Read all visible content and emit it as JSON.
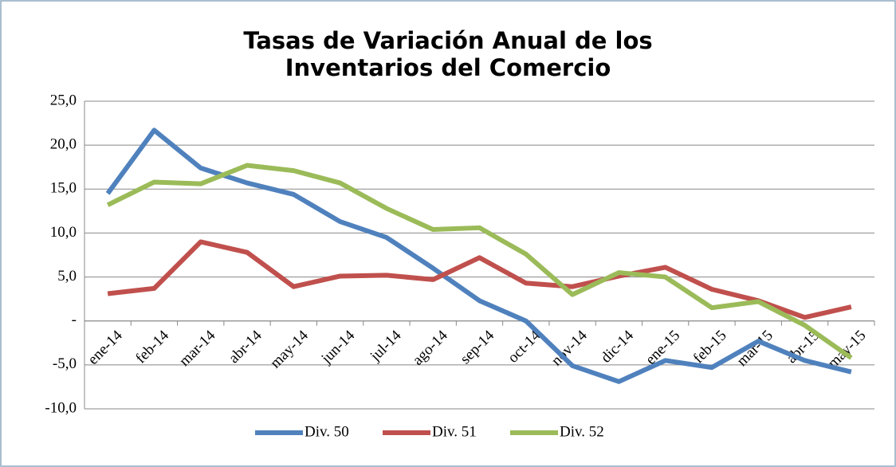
{
  "chart_data": {
    "type": "line",
    "title": "Tasas de Variación Anual de los Inventarios del Comercio",
    "categories": [
      "ene-14",
      "feb-14",
      "mar-14",
      "abr-14",
      "may-14",
      "jun-14",
      "jul-14",
      "ago-14",
      "sep-14",
      "oct-14",
      "nov-14",
      "dic-14",
      "ene-15",
      "feb-15",
      "mar-15",
      "abr-15",
      "may-15"
    ],
    "series": [
      {
        "name": "Div. 50",
        "color": "#4f81bd",
        "values": [
          14.5,
          21.7,
          17.4,
          15.7,
          14.4,
          11.3,
          9.5,
          6.0,
          2.3,
          0.0,
          -5.1,
          -6.9,
          -4.5,
          -5.3,
          -2.3,
          -4.5,
          -5.8
        ]
      },
      {
        "name": "Div. 51",
        "color": "#c0504d",
        "values": [
          3.1,
          3.7,
          9.0,
          7.8,
          3.9,
          5.1,
          5.2,
          4.7,
          7.2,
          4.3,
          3.9,
          5.1,
          6.1,
          3.6,
          2.3,
          0.4,
          1.6
        ]
      },
      {
        "name": "Div. 52",
        "color": "#9bbb59",
        "values": [
          13.2,
          15.8,
          15.6,
          17.7,
          17.1,
          15.7,
          12.8,
          10.4,
          10.6,
          7.6,
          3.0,
          5.5,
          5.0,
          1.5,
          2.2,
          -0.5,
          -4.2
        ]
      }
    ],
    "ylim": [
      -10,
      25
    ],
    "yticks": [
      {
        "value": -10,
        "label": "-10,0"
      },
      {
        "value": -5,
        "label": "-5,0"
      },
      {
        "value": 0,
        "label": "-"
      },
      {
        "value": 5,
        "label": "5,0"
      },
      {
        "value": 10,
        "label": "10,0"
      },
      {
        "value": 15,
        "label": "15,0"
      },
      {
        "value": 20,
        "label": "20,0"
      },
      {
        "value": 25,
        "label": "25,0"
      }
    ],
    "grid": true,
    "legend": "bottom"
  }
}
